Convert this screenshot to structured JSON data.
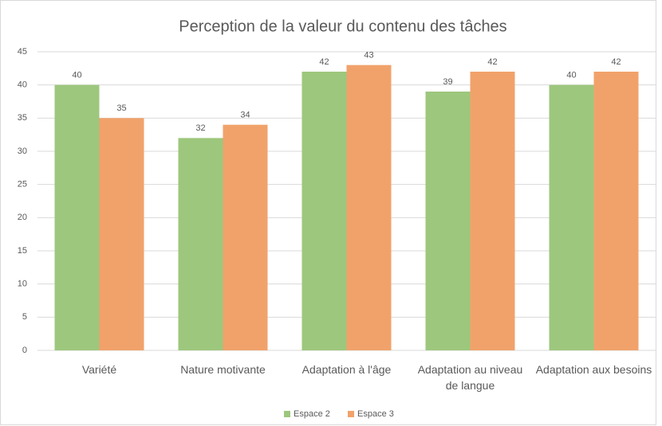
{
  "chart_data": {
    "type": "bar",
    "title": "Perception de la valeur du contenu des tâches",
    "categories": [
      "Variété",
      "Nature motivante",
      "Adaptation à l'âge",
      "Adaptation au niveau de langue",
      "Adaptation aux besoins"
    ],
    "series": [
      {
        "name": "Espace 2",
        "color": "#9dc77d",
        "values": [
          40,
          32,
          42,
          39,
          40
        ]
      },
      {
        "name": "Espace 3",
        "color": "#f1a26b",
        "values": [
          35,
          34,
          43,
          42,
          42
        ]
      }
    ],
    "ylim": [
      0,
      45
    ],
    "yticks": [
      0,
      5,
      10,
      15,
      20,
      25,
      30,
      35,
      40,
      45
    ],
    "grid": true,
    "legend": "bottom"
  }
}
